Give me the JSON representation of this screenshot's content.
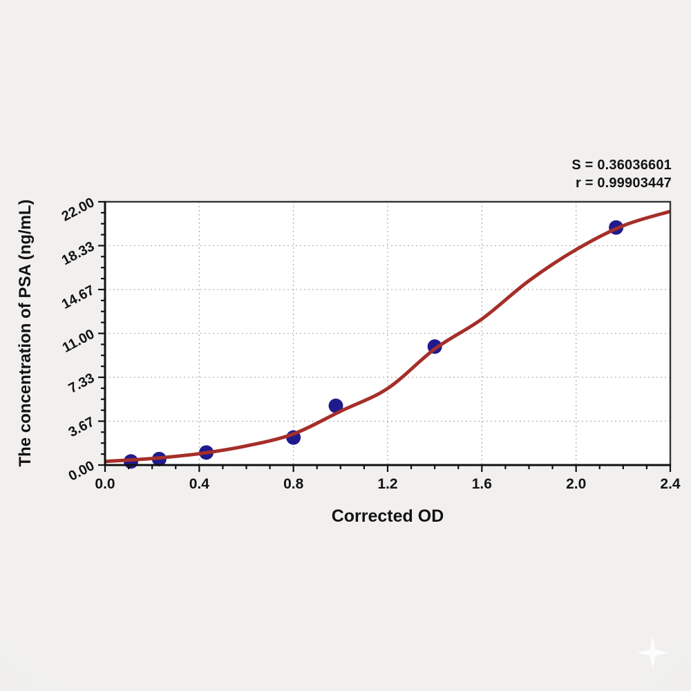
{
  "stats": {
    "s_line": "S = 0.36036601",
    "r_line": "r = 0.99903447"
  },
  "chart_data": {
    "type": "scatter",
    "title": "",
    "xlabel": "Corrected OD",
    "ylabel": "The concentration of PSA (ng/mL)",
    "xlim": [
      0,
      2.4
    ],
    "ylim": [
      0,
      22
    ],
    "x_major_ticks": [
      0,
      0.4,
      0.8,
      1.2,
      1.6,
      2.0,
      2.4
    ],
    "x_tick_labels": [
      "0.0",
      "0.4",
      "0.8",
      "1.2",
      "1.6",
      "2.0",
      "2.4"
    ],
    "x_minor_divisions": 4,
    "y_major_ticks": [
      0,
      3.6667,
      7.3333,
      11,
      14.6667,
      18.3333,
      22
    ],
    "y_tick_labels": [
      "0.00",
      "3.67",
      "7.33",
      "11.00",
      "14.67",
      "18.33",
      "22.00"
    ],
    "y_minor_divisions": 4,
    "grid": {
      "show": true,
      "style": "dotted",
      "color": "#b3b1ae"
    },
    "legend": {
      "show": false
    },
    "fit_statistics": {
      "S": 0.36036601,
      "r": 0.99903447
    },
    "series": [
      {
        "name": "standard-points",
        "type": "scatter",
        "color": "#201b8d",
        "marker": "circle",
        "marker_radius": 10.5,
        "points": [
          [
            0.11,
            0.3
          ],
          [
            0.23,
            0.5
          ],
          [
            0.43,
            1.05
          ],
          [
            0.8,
            2.3
          ],
          [
            0.98,
            4.95
          ],
          [
            1.4,
            9.9
          ],
          [
            2.17,
            19.85
          ]
        ]
      },
      {
        "name": "fitted-curve",
        "type": "line",
        "color": "#a52f29",
        "width": 5,
        "points": [
          [
            0.0,
            0.3
          ],
          [
            0.2,
            0.55
          ],
          [
            0.4,
            0.95
          ],
          [
            0.6,
            1.6
          ],
          [
            0.8,
            2.6
          ],
          [
            1.0,
            4.5
          ],
          [
            1.2,
            6.4
          ],
          [
            1.4,
            9.7
          ],
          [
            1.6,
            12.2
          ],
          [
            1.8,
            15.4
          ],
          [
            2.0,
            18.0
          ],
          [
            2.2,
            20.0
          ],
          [
            2.4,
            21.2
          ]
        ]
      }
    ],
    "colors": {
      "frame": "#333333",
      "axis": "#111111",
      "tick": "#111111",
      "tick_label": "#121212",
      "plot_bg": "#ffffff",
      "page_bg": "#f0efed"
    }
  },
  "watermark": {
    "icon": "sparkle-star"
  }
}
